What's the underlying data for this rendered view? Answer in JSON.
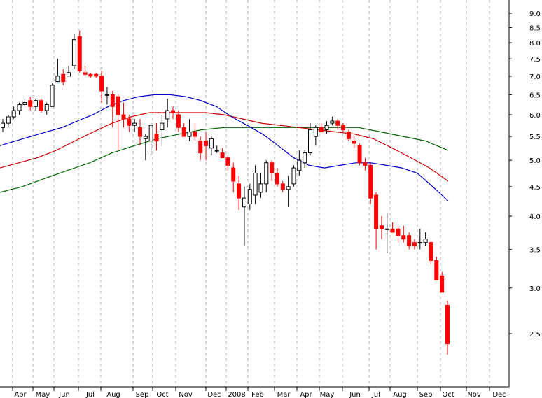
{
  "chart_data": {
    "type": "candlestick",
    "y_scale": "log",
    "ylim": [
      2.1,
      9.5
    ],
    "grid": "vertical",
    "x_labels": [
      "Apr",
      "May",
      "Jun",
      "Jul",
      "Aug",
      "Sep",
      "Oct",
      "Nov",
      "Dec",
      "2008",
      "Feb",
      "Mar",
      "Apr",
      "May",
      "Jun",
      "Jul",
      "Aug",
      "Sep",
      "Oct",
      "Nov",
      "Dec"
    ],
    "y_ticks": [
      "9.0",
      "8.5",
      "8.0",
      "7.5",
      "7.0",
      "6.5",
      "6.0",
      "5.5",
      "5.0",
      "4.5",
      "4.0",
      "3.5",
      "3.0",
      "2.5"
    ],
    "colors": {
      "up": "#ffffff",
      "down": "#ff0000",
      "ma_short": "#0000cc",
      "ma_mid": "#cc0000",
      "ma_long": "#006600"
    },
    "candles": [
      [
        5.7,
        5.9,
        5.6,
        5.8
      ],
      [
        5.8,
        6.0,
        5.7,
        5.95
      ],
      [
        5.95,
        6.2,
        5.9,
        6.1
      ],
      [
        6.1,
        6.3,
        6.0,
        6.25
      ],
      [
        6.25,
        6.4,
        6.2,
        6.3
      ],
      [
        6.35,
        6.45,
        6.1,
        6.2
      ],
      [
        6.2,
        6.4,
        6.1,
        6.35
      ],
      [
        6.35,
        6.4,
        6.05,
        6.1
      ],
      [
        6.1,
        6.3,
        6.0,
        6.25
      ],
      [
        6.2,
        6.8,
        6.2,
        6.75
      ],
      [
        6.85,
        7.5,
        6.85,
        7.0
      ],
      [
        7.05,
        7.2,
        6.75,
        6.85
      ],
      [
        7.0,
        7.3,
        7.0,
        7.1
      ],
      [
        7.3,
        8.3,
        7.2,
        8.1
      ],
      [
        8.2,
        8.4,
        7.1,
        7.15
      ],
      [
        7.1,
        7.3,
        7.0,
        7.05
      ],
      [
        7.05,
        7.1,
        6.95,
        7.0
      ],
      [
        7.05,
        7.1,
        6.95,
        7.0
      ],
      [
        7.0,
        7.15,
        6.3,
        6.6
      ],
      [
        6.5,
        6.7,
        6.25,
        6.5
      ],
      [
        6.5,
        6.6,
        5.7,
        6.2
      ],
      [
        6.45,
        6.5,
        5.2,
        6.0
      ],
      [
        6.0,
        6.3,
        5.7,
        5.9
      ],
      [
        5.9,
        6.0,
        5.6,
        5.75
      ],
      [
        5.75,
        5.9,
        5.6,
        5.8
      ],
      [
        5.7,
        5.9,
        5.3,
        5.5
      ],
      [
        5.45,
        5.55,
        5.0,
        5.5
      ],
      [
        5.4,
        5.8,
        5.1,
        5.75
      ],
      [
        5.55,
        5.8,
        5.2,
        5.4
      ],
      [
        5.65,
        6.0,
        5.3,
        5.8
      ],
      [
        5.9,
        6.4,
        5.7,
        6.1
      ],
      [
        6.1,
        6.2,
        5.9,
        6.05
      ],
      [
        6.0,
        6.1,
        5.6,
        5.7
      ],
      [
        5.7,
        5.8,
        5.5,
        5.5
      ],
      [
        5.5,
        5.9,
        5.4,
        5.6
      ],
      [
        5.6,
        5.8,
        5.4,
        5.5
      ],
      [
        5.4,
        5.5,
        5.0,
        5.15
      ],
      [
        5.4,
        5.6,
        5.0,
        5.3
      ],
      [
        5.25,
        5.5,
        5.1,
        5.45
      ],
      [
        5.2,
        5.3,
        5.15,
        5.2
      ],
      [
        5.15,
        5.25,
        5.05,
        5.05
      ],
      [
        5.05,
        5.1,
        4.8,
        4.9
      ],
      [
        4.85,
        4.95,
        4.4,
        4.6
      ],
      [
        4.55,
        4.7,
        4.1,
        4.3
      ],
      [
        4.15,
        4.5,
        3.55,
        4.3
      ],
      [
        4.2,
        4.55,
        4.1,
        4.45
      ],
      [
        4.35,
        4.9,
        4.2,
        4.75
      ],
      [
        4.4,
        4.75,
        4.3,
        4.55
      ],
      [
        4.55,
        5.0,
        4.4,
        4.95
      ],
      [
        4.95,
        5.0,
        4.6,
        4.75
      ],
      [
        4.75,
        4.85,
        4.5,
        4.55
      ],
      [
        4.55,
        4.6,
        4.4,
        4.45
      ],
      [
        4.45,
        4.7,
        4.15,
        4.5
      ],
      [
        4.55,
        4.9,
        4.5,
        4.85
      ],
      [
        4.8,
        5.2,
        4.7,
        5.0
      ],
      [
        4.95,
        5.2,
        4.85,
        5.15
      ],
      [
        5.15,
        5.8,
        5.1,
        5.65
      ],
      [
        5.5,
        5.75,
        5.3,
        5.7
      ],
      [
        5.7,
        5.8,
        5.6,
        5.6
      ],
      [
        5.65,
        5.85,
        5.55,
        5.75
      ],
      [
        5.8,
        5.95,
        5.75,
        5.85
      ],
      [
        5.85,
        5.9,
        5.65,
        5.75
      ],
      [
        5.75,
        5.8,
        5.6,
        5.65
      ],
      [
        5.6,
        5.65,
        5.4,
        5.45
      ],
      [
        5.4,
        5.5,
        5.25,
        5.35
      ],
      [
        5.3,
        5.35,
        4.9,
        4.95
      ],
      [
        4.95,
        5.05,
        4.8,
        4.9
      ],
      [
        4.9,
        4.95,
        4.2,
        4.3
      ],
      [
        4.35,
        4.4,
        3.5,
        3.8
      ],
      [
        3.85,
        4.0,
        3.65,
        3.8
      ],
      [
        3.8,
        4.05,
        3.45,
        3.8
      ],
      [
        3.8,
        3.9,
        3.75,
        3.75
      ],
      [
        3.8,
        3.85,
        3.6,
        3.7
      ],
      [
        3.7,
        3.85,
        3.6,
        3.65
      ],
      [
        3.7,
        3.75,
        3.5,
        3.55
      ],
      [
        3.6,
        3.65,
        3.5,
        3.55
      ],
      [
        3.6,
        3.8,
        3.5,
        3.6
      ],
      [
        3.6,
        3.75,
        3.55,
        3.65
      ],
      [
        3.6,
        3.6,
        3.3,
        3.35
      ],
      [
        3.35,
        3.4,
        3.1,
        3.1
      ],
      [
        3.15,
        3.2,
        2.95,
        2.95
      ],
      [
        2.8,
        2.85,
        2.3,
        2.4
      ]
    ],
    "ma_short": [
      5.3,
      5.4,
      5.5,
      5.6,
      5.7,
      5.85,
      6.0,
      6.2,
      6.35,
      6.45,
      6.5,
      6.5,
      6.45,
      6.35,
      6.2,
      5.95,
      5.75,
      5.55,
      5.3,
      5.05,
      4.9,
      4.85,
      4.9,
      4.95,
      4.95,
      4.9,
      4.85,
      4.75,
      4.5,
      4.25
    ],
    "ma_mid": [
      4.85,
      4.95,
      5.05,
      5.2,
      5.4,
      5.6,
      5.8,
      5.95,
      6.05,
      6.05,
      6.05,
      6.05,
      6.0,
      5.9,
      5.8,
      5.75,
      5.7,
      5.65,
      5.6,
      5.55,
      5.45,
      5.25,
      5.05,
      4.85,
      4.6
    ],
    "ma_long": [
      4.4,
      4.5,
      4.65,
      4.8,
      4.95,
      5.15,
      5.3,
      5.45,
      5.55,
      5.65,
      5.7,
      5.7,
      5.7,
      5.7,
      5.7,
      5.7,
      5.7,
      5.6,
      5.5,
      5.4,
      5.2
    ]
  }
}
